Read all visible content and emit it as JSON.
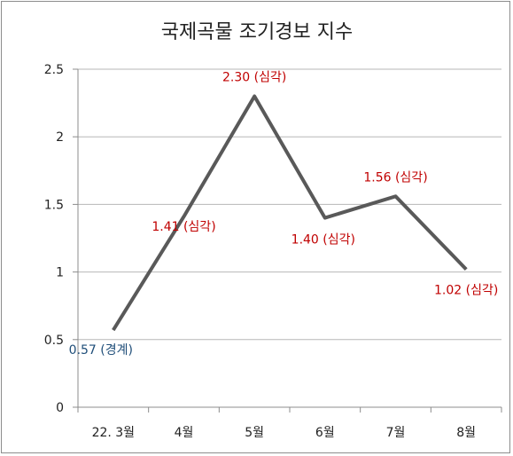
{
  "chart_data": {
    "type": "line",
    "title": "국제곡물 조기경보 지수",
    "categories": [
      "22. 3월",
      "4월",
      "5월",
      "6월",
      "7월",
      "8월"
    ],
    "series": [
      {
        "values": [
          0.57,
          1.41,
          2.3,
          1.4,
          1.56,
          1.02
        ]
      }
    ],
    "data_labels": [
      "0.57 (경계)",
      "1.41 (심각)",
      "2.30 (심각)",
      "1.40 (심각)",
      "1.56 (심각)",
      "1.02 (심각)"
    ],
    "data_label_colors": [
      "#1f4e79",
      "#c00000",
      "#c00000",
      "#c00000",
      "#c00000",
      "#c00000"
    ],
    "y_ticks": [
      "0",
      "0.5",
      "1",
      "1.5",
      "2",
      "2.5"
    ],
    "ylim": [
      0,
      2.5
    ],
    "grid": true,
    "legend": "none",
    "line_color": "#595959",
    "grid_color": "#b7b7b7"
  }
}
